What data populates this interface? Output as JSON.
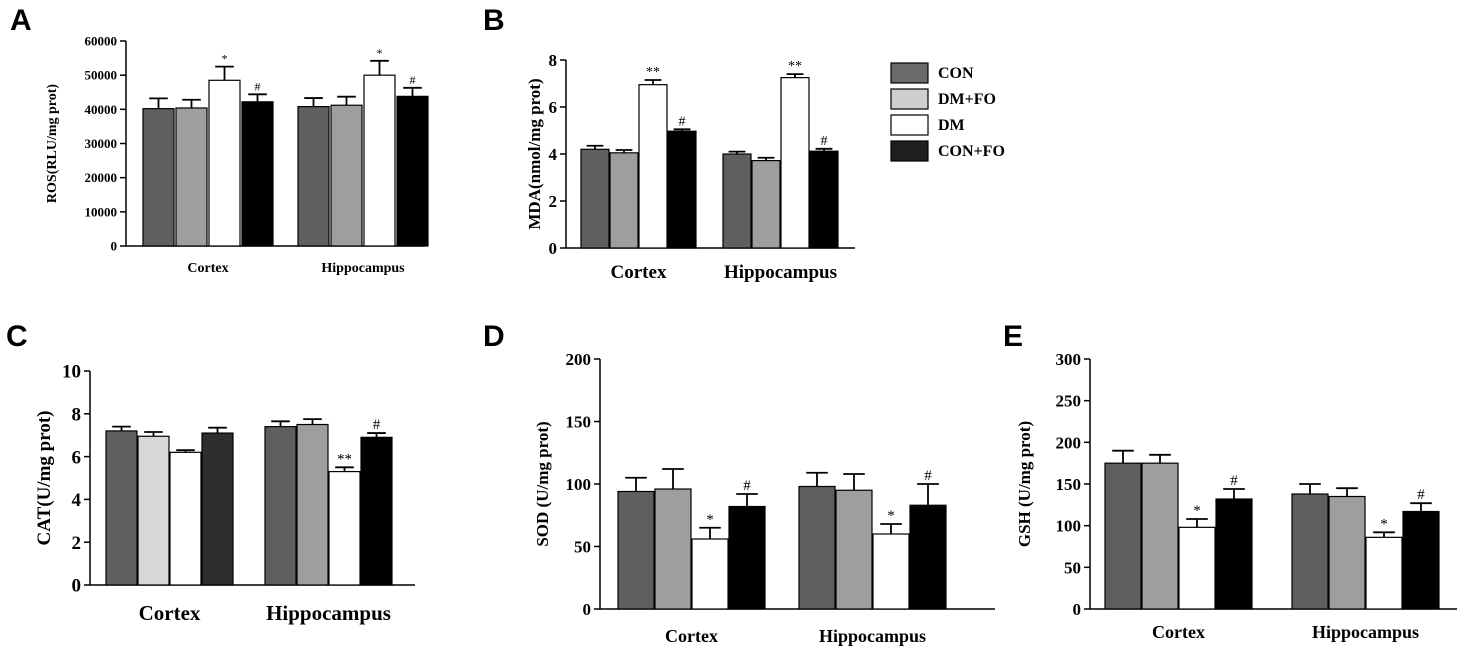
{
  "groups": [
    "CON",
    "DM+FO",
    "DM",
    "CON+FO"
  ],
  "colors": [
    "#5f5f5f",
    "#d2d2d2",
    "#ffffff",
    "#000000"
  ],
  "chart_data": [
    {
      "panel": "A",
      "type": "bar",
      "ylabel": "ROS(RLU/mg prot)",
      "ylim": [
        0,
        60000
      ],
      "yticks": [
        "0",
        "10000",
        "20000",
        "30000",
        "40000",
        "50000",
        "60000"
      ],
      "categories": [
        "Cortex",
        "Hippocampus"
      ],
      "colors": [
        "#5f5f5f",
        "#9e9e9e",
        "#ffffff",
        "#000000"
      ],
      "series": [
        {
          "values": [
            40200,
            40800
          ],
          "errors": [
            3000,
            2500
          ]
        },
        {
          "values": [
            40400,
            41200
          ],
          "errors": [
            2400,
            2500
          ]
        },
        {
          "values": [
            48500,
            50000
          ],
          "errors": [
            4000,
            4200
          ]
        },
        {
          "values": [
            42200,
            43800
          ],
          "errors": [
            2200,
            2500
          ]
        }
      ],
      "annotations": [
        [
          "",
          ""
        ],
        [
          "",
          ""
        ],
        [
          "*",
          "*"
        ],
        [
          "#",
          "#"
        ]
      ]
    },
    {
      "panel": "B",
      "type": "bar",
      "ylabel": "MDA(nmol/mg prot)",
      "ylim": [
        0,
        8
      ],
      "yticks": [
        "0",
        "2",
        "4",
        "6",
        "8"
      ],
      "categories": [
        "Cortex",
        "Hippocampus"
      ],
      "colors": [
        "#5f5f5f",
        "#9e9e9e",
        "#ffffff",
        "#000000"
      ],
      "series": [
        {
          "values": [
            4.2,
            4.0
          ],
          "errors": [
            0.15,
            0.1
          ]
        },
        {
          "values": [
            4.05,
            3.72
          ],
          "errors": [
            0.12,
            0.12
          ]
        },
        {
          "values": [
            6.95,
            7.25
          ],
          "errors": [
            0.2,
            0.15
          ]
        },
        {
          "values": [
            4.97,
            4.12
          ],
          "errors": [
            0.08,
            0.1
          ]
        }
      ],
      "annotations": [
        [
          "",
          ""
        ],
        [
          "",
          ""
        ],
        [
          "**",
          "**"
        ],
        [
          "#",
          "#"
        ]
      ]
    },
    {
      "panel": "C",
      "type": "bar",
      "ylabel": "CAT(U/mg prot)",
      "ylim": [
        0,
        10
      ],
      "yticks": [
        "0",
        "2",
        "4",
        "6",
        "8",
        "10"
      ],
      "categories": [
        "Cortex",
        "Hippocampus"
      ],
      "colors": [
        "#5f5f5f",
        "#d8d8d8",
        "#ffffff",
        "#2e2e2e",
        "#5f5f5f",
        "#9e9e9e",
        "#ffffff",
        "#000000"
      ],
      "series": [
        {
          "values": [
            7.2,
            7.4
          ],
          "errors": [
            0.2,
            0.25
          ]
        },
        {
          "values": [
            6.95,
            7.5
          ],
          "errors": [
            0.2,
            0.25
          ]
        },
        {
          "values": [
            6.2,
            5.3
          ],
          "errors": [
            0.1,
            0.2
          ]
        },
        {
          "values": [
            7.1,
            6.9
          ],
          "errors": [
            0.25,
            0.2
          ]
        }
      ],
      "annotations": [
        [
          "",
          ""
        ],
        [
          "",
          ""
        ],
        [
          "",
          "**"
        ],
        [
          "",
          "#"
        ]
      ]
    },
    {
      "panel": "D",
      "type": "bar",
      "ylabel": "SOD (U/mg prot)",
      "ylim": [
        0,
        200
      ],
      "yticks": [
        "0",
        "50",
        "100",
        "150",
        "200"
      ],
      "categories": [
        "Cortex",
        "Hippocampus"
      ],
      "colors": [
        "#5f5f5f",
        "#9e9e9e",
        "#ffffff",
        "#000000"
      ],
      "series": [
        {
          "values": [
            94,
            98
          ],
          "errors": [
            11,
            11
          ]
        },
        {
          "values": [
            96,
            95
          ],
          "errors": [
            16,
            13
          ]
        },
        {
          "values": [
            56,
            60
          ],
          "errors": [
            9,
            8
          ]
        },
        {
          "values": [
            82,
            83
          ],
          "errors": [
            10,
            17
          ]
        }
      ],
      "annotations": [
        [
          "",
          ""
        ],
        [
          "",
          ""
        ],
        [
          "*",
          "*"
        ],
        [
          "#",
          "#"
        ]
      ]
    },
    {
      "panel": "E",
      "type": "bar",
      "ylabel": "GSH (U/mg prot)",
      "ylim": [
        0,
        300
      ],
      "yticks": [
        "0",
        "50",
        "100",
        "150",
        "200",
        "250",
        "300"
      ],
      "categories": [
        "Cortex",
        "Hippocampus"
      ],
      "colors": [
        "#5f5f5f",
        "#9e9e9e",
        "#ffffff",
        "#000000"
      ],
      "series": [
        {
          "values": [
            175,
            138
          ],
          "errors": [
            15,
            12
          ]
        },
        {
          "values": [
            175,
            135
          ],
          "errors": [
            10,
            10
          ]
        },
        {
          "values": [
            98,
            86
          ],
          "errors": [
            10,
            6
          ]
        },
        {
          "values": [
            132,
            117
          ],
          "errors": [
            12,
            10
          ]
        }
      ],
      "annotations": [
        [
          "",
          ""
        ],
        [
          "",
          ""
        ],
        [
          "*",
          "*"
        ],
        [
          "#",
          "#"
        ]
      ]
    }
  ]
}
